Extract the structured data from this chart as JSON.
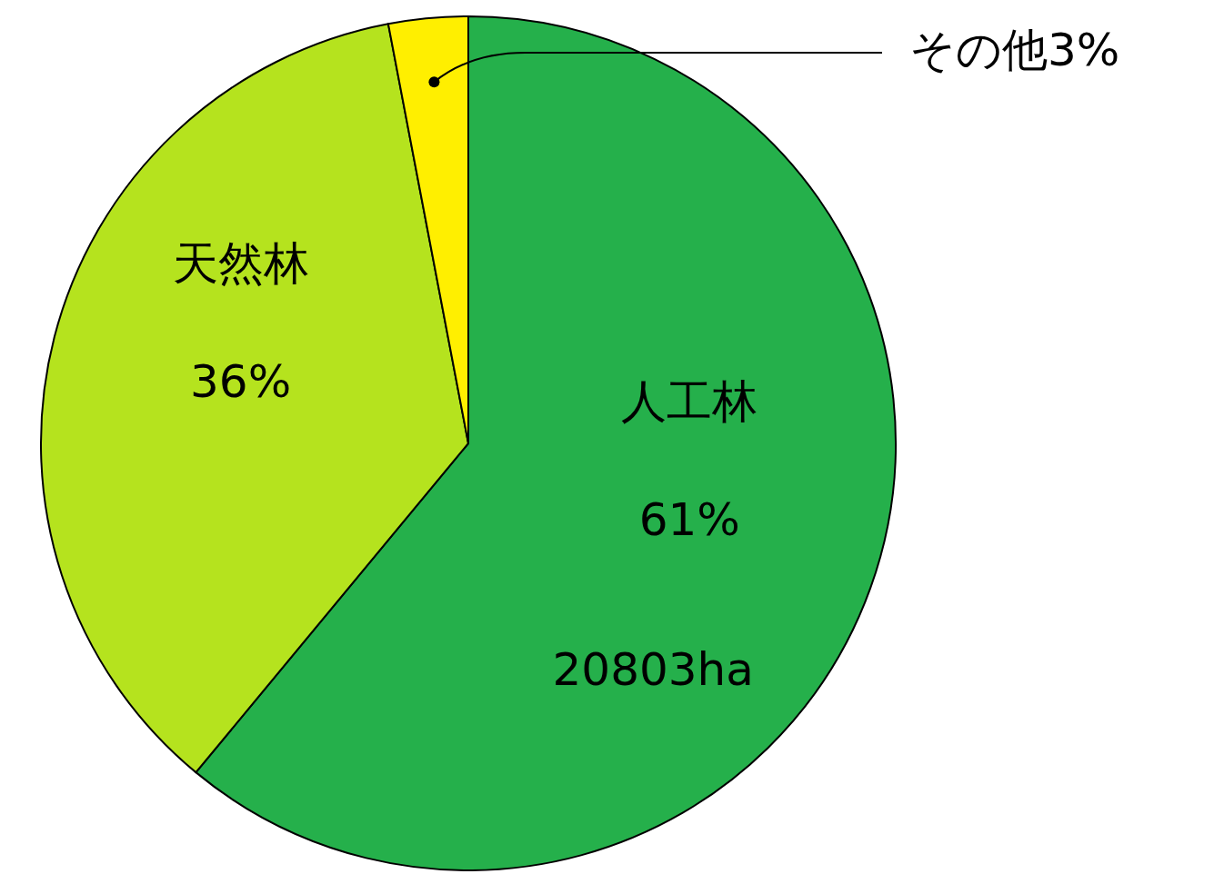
{
  "chart_data": {
    "type": "pie",
    "categories": [
      "人工林",
      "天然林",
      "その他"
    ],
    "values": [
      61,
      36,
      3
    ],
    "colors": [
      "#25b04b",
      "#b5e31e",
      "#ffef00"
    ],
    "value_labels": [
      "61%",
      "36%",
      "3%"
    ],
    "annotations": [
      "20803ha"
    ],
    "legend": false
  }
}
